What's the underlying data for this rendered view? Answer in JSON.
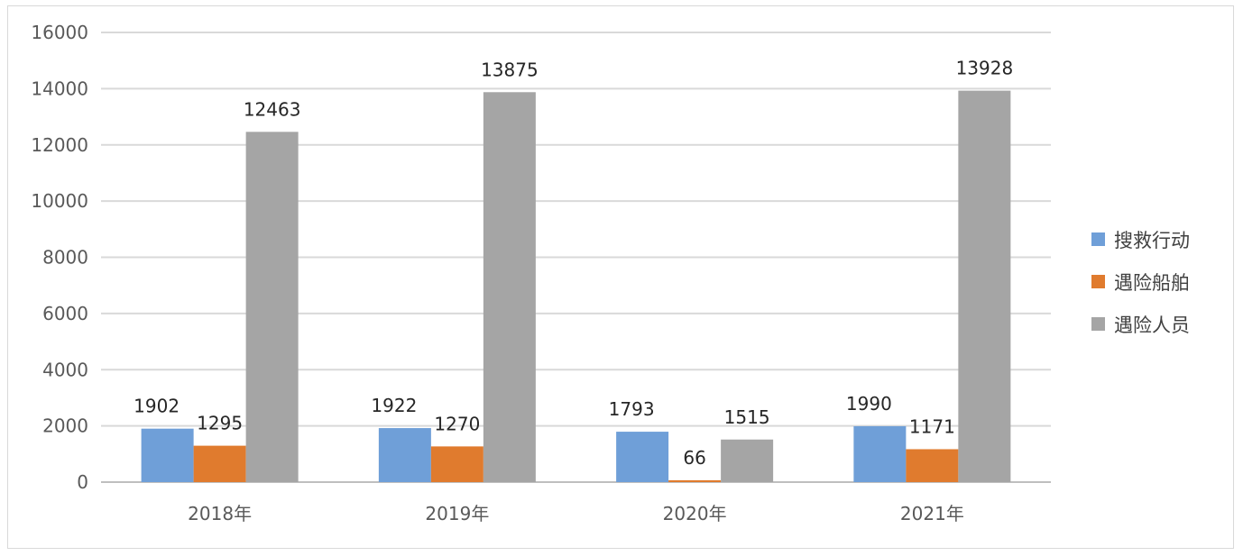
{
  "chart_data": {
    "type": "bar",
    "categories": [
      "2018年",
      "2019年",
      "2020年",
      "2021年"
    ],
    "series": [
      {
        "name": "搜救行动",
        "values": [
          1902,
          1922,
          1793,
          1990
        ],
        "color": "#6f9fd8"
      },
      {
        "name": "遇险船舶",
        "values": [
          1295,
          1270,
          66,
          1171
        ],
        "color": "#e07b2e"
      },
      {
        "name": "遇险人员",
        "values": [
          12463,
          13875,
          1515,
          13928
        ],
        "color": "#a5a5a5"
      }
    ],
    "ylim": [
      0,
      16000
    ],
    "yticks": [
      0,
      2000,
      4000,
      6000,
      8000,
      10000,
      12000,
      14000,
      16000
    ],
    "grid": true,
    "legend_position": "right",
    "title": "",
    "xlabel": "",
    "ylabel": ""
  }
}
